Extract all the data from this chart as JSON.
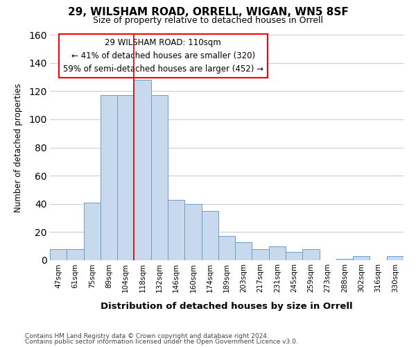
{
  "title1": "29, WILSHAM ROAD, ORRELL, WIGAN, WN5 8SF",
  "title2": "Size of property relative to detached houses in Orrell",
  "xlabel": "Distribution of detached houses by size in Orrell",
  "ylabel": "Number of detached properties",
  "footnote1": "Contains HM Land Registry data © Crown copyright and database right 2024.",
  "footnote2": "Contains public sector information licensed under the Open Government Licence v3.0.",
  "annotation_line1": "29 WILSHAM ROAD: 110sqm",
  "annotation_line2": "← 41% of detached houses are smaller (320)",
  "annotation_line3": "59% of semi-detached houses are larger (452) →",
  "bar_labels": [
    "47sqm",
    "61sqm",
    "75sqm",
    "89sqm",
    "104sqm",
    "118sqm",
    "132sqm",
    "146sqm",
    "160sqm",
    "174sqm",
    "189sqm",
    "203sqm",
    "217sqm",
    "231sqm",
    "245sqm",
    "259sqm",
    "273sqm",
    "288sqm",
    "302sqm",
    "316sqm",
    "330sqm"
  ],
  "bar_values": [
    8,
    8,
    41,
    117,
    117,
    128,
    117,
    43,
    40,
    35,
    17,
    13,
    8,
    10,
    6,
    8,
    0,
    1,
    3,
    0,
    3
  ],
  "bar_color": "#c9d9ed",
  "bar_edge_color": "#6b9ec8",
  "bg_color": "#ffffff",
  "grid_color": "#c8d0dc",
  "red_line_x": 4.5,
  "ylim": [
    0,
    160
  ],
  "yticks": [
    0,
    20,
    40,
    60,
    80,
    100,
    120,
    140,
    160
  ]
}
